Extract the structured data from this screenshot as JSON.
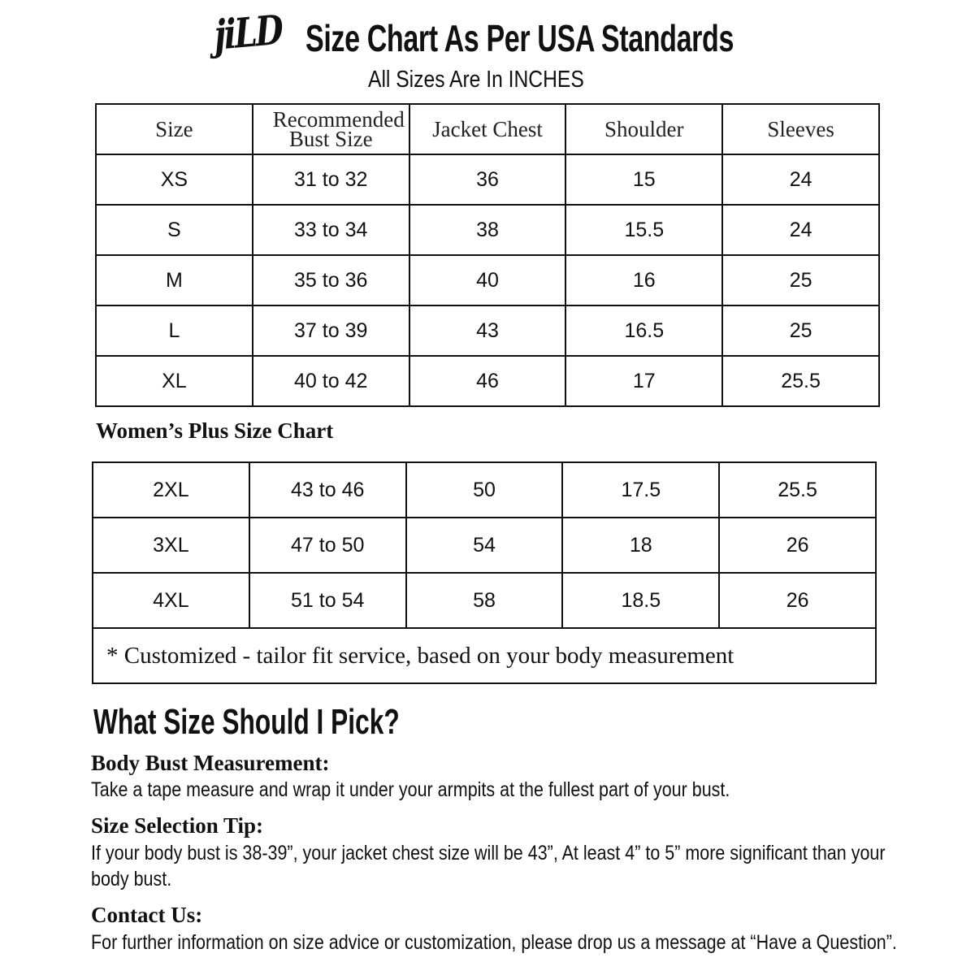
{
  "header": {
    "logo": "jiLD",
    "title": "Size Chart As Per USA Standards",
    "subtitle": "All Sizes Are In INCHES"
  },
  "columns": [
    "Size",
    "Recommended Bust Size",
    "Jacket Chest",
    "Shoulder",
    "Sleeves"
  ],
  "standard_rows": [
    [
      "XS",
      "31 to 32",
      "36",
      "15",
      "24"
    ],
    [
      "S",
      "33 to 34",
      "38",
      "15.5",
      "24"
    ],
    [
      "M",
      "35 to 36",
      "40",
      "16",
      "25"
    ],
    [
      "L",
      "37 to 39",
      "43",
      "16.5",
      "25"
    ],
    [
      "XL",
      "40 to 42",
      "46",
      "17",
      "25.5"
    ]
  ],
  "plus_title": "Women’s Plus Size Chart",
  "plus_rows": [
    [
      "2XL",
      "43 to 46",
      "50",
      "17.5",
      "25.5"
    ],
    [
      "3XL",
      "47 to 50",
      "54",
      "18",
      "26"
    ],
    [
      "4XL",
      "51 to 54",
      "58",
      "18.5",
      "26"
    ]
  ],
  "custom_note": "* Customized - tailor fit service,  based on your body measurement",
  "guide": {
    "title": "What Size Should I Pick?",
    "sections": [
      {
        "heading": "Body Bust Measurement:",
        "text": "Take a tape measure and wrap it under your armpits at the fullest part of your bust."
      },
      {
        "heading": "Size Selection Tip:",
        "text": "If your body bust is 38-39”, your jacket chest size will be 43”, At least 4” to 5” more significant than your",
        "text2": "body bust."
      },
      {
        "heading": "Contact Us:",
        "text": "For further information on size advice or customization, please drop us a message at “Have a Question”."
      }
    ]
  }
}
